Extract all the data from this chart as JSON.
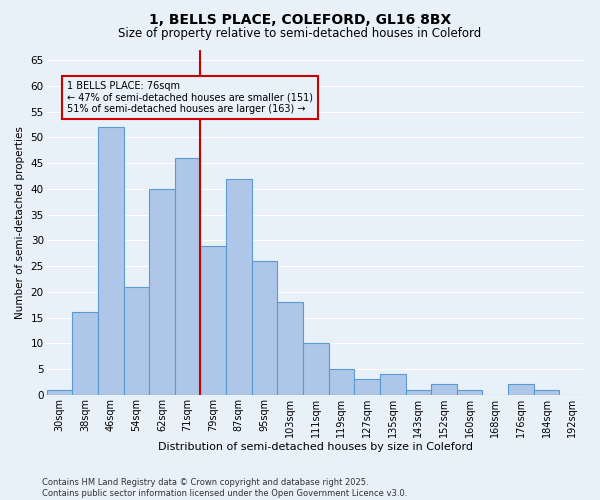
{
  "title": "1, BELLS PLACE, COLEFORD, GL16 8BX",
  "subtitle": "Size of property relative to semi-detached houses in Coleford",
  "xlabel": "Distribution of semi-detached houses by size in Coleford",
  "ylabel": "Number of semi-detached properties",
  "footer1": "Contains HM Land Registry data © Crown copyright and database right 2025.",
  "footer2": "Contains public sector information licensed under the Open Government Licence v3.0.",
  "categories": [
    "30sqm",
    "38sqm",
    "46sqm",
    "54sqm",
    "62sqm",
    "71sqm",
    "79sqm",
    "87sqm",
    "95sqm",
    "103sqm",
    "111sqm",
    "119sqm",
    "127sqm",
    "135sqm",
    "143sqm",
    "152sqm",
    "160sqm",
    "168sqm",
    "176sqm",
    "184sqm",
    "192sqm"
  ],
  "values": [
    1,
    16,
    52,
    21,
    40,
    46,
    29,
    42,
    26,
    18,
    10,
    5,
    3,
    4,
    1,
    2,
    1,
    0,
    2,
    1,
    0
  ],
  "bar_color": "#aec6e8",
  "bar_edge_color": "#5b9bd5",
  "background_color": "#e8f0f8",
  "grid_color": "#ffffff",
  "vline_x": 5.5,
  "vline_color": "#cc0000",
  "annotation_box_color": "#cc0000",
  "annotation_text_line1": "1 BELLS PLACE: 76sqm",
  "annotation_text_line2": "← 47% of semi-detached houses are smaller (151)",
  "annotation_text_line3": "51% of semi-detached houses are larger (163) →",
  "ylim": [
    0,
    67
  ],
  "yticks": [
    0,
    5,
    10,
    15,
    20,
    25,
    30,
    35,
    40,
    45,
    50,
    55,
    60,
    65
  ]
}
